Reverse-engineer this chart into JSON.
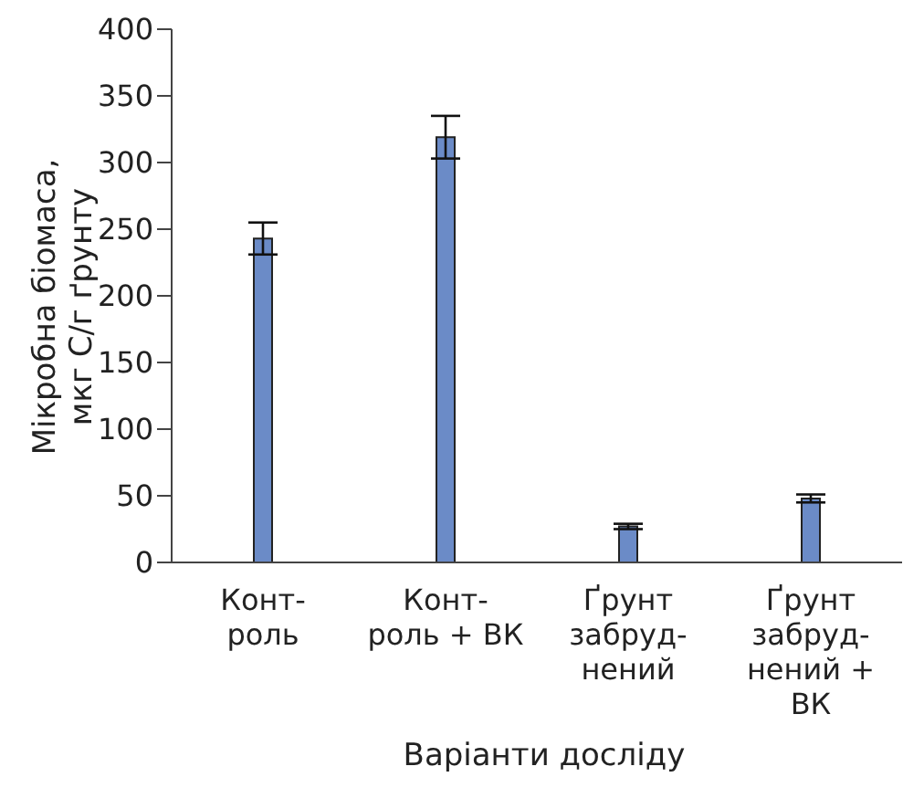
{
  "chart_data": {
    "type": "bar",
    "xlabel": "Варіанти досліду",
    "ylabel": "Мікробна біомаса,\nмкг С/г ґрунту",
    "categories": [
      "Конт-\nроль",
      "Конт-\nроль + ВК",
      "Ґрунт\nзабруд-\nнений",
      "Ґрунт\nзабруд-\nнений +\nВК"
    ],
    "values": [
      243,
      319,
      27,
      48
    ],
    "errors": [
      12,
      16,
      2,
      3
    ],
    "color": "#6b8bc7",
    "ylim": [
      0,
      400
    ],
    "yticks": [
      0,
      50,
      100,
      150,
      200,
      250,
      300,
      350,
      400
    ],
    "grid": false
  }
}
